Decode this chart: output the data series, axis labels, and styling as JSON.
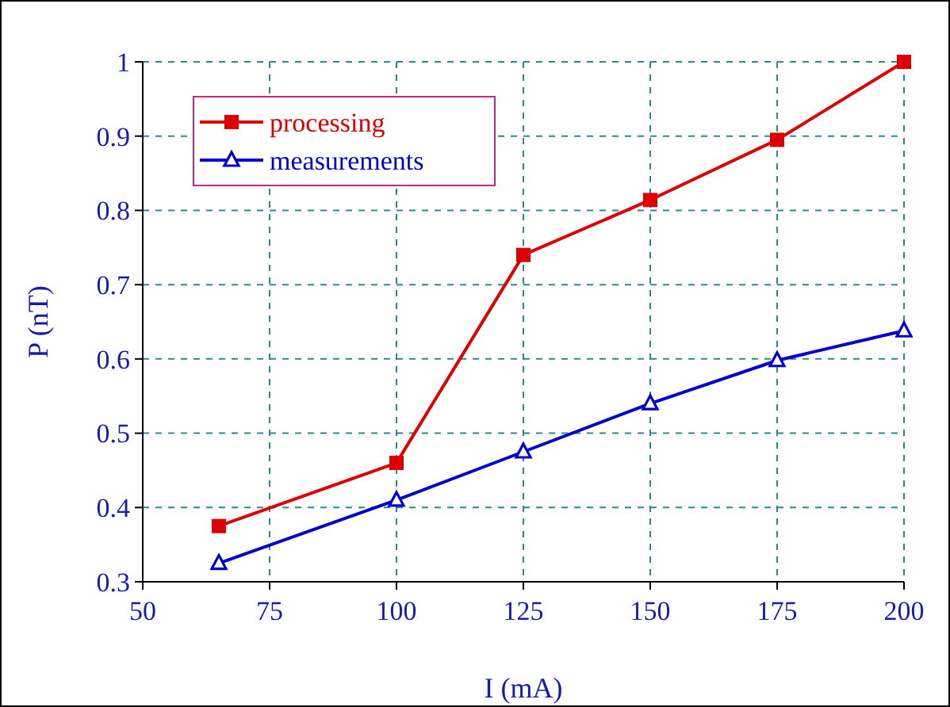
{
  "chart_data": {
    "type": "line",
    "xlabel": "I (mA)",
    "ylabel": "P (nT)",
    "xlim": [
      50,
      200
    ],
    "xticks": [
      50,
      75,
      100,
      125,
      150,
      175,
      200
    ],
    "ylim": [
      0.3,
      1
    ],
    "yticks": [
      0.3,
      0.4,
      0.5,
      0.6,
      0.7,
      0.8,
      0.9,
      1
    ],
    "grid": true,
    "legend": "top left",
    "line_style": "solid",
    "series": [
      {
        "name": "processing",
        "color": "#dd0000",
        "marker": "square",
        "x": [
          65,
          100,
          125,
          150,
          175,
          200
        ],
        "values": [
          0.375,
          0.46,
          0.74,
          0.814,
          0.895,
          1.0
        ]
      },
      {
        "name": "measurements",
        "color": "#0000cc",
        "marker": "triangle",
        "x": [
          65,
          100,
          125,
          150,
          175,
          200
        ],
        "values": [
          0.325,
          0.41,
          0.475,
          0.54,
          0.598,
          0.638
        ]
      }
    ]
  }
}
